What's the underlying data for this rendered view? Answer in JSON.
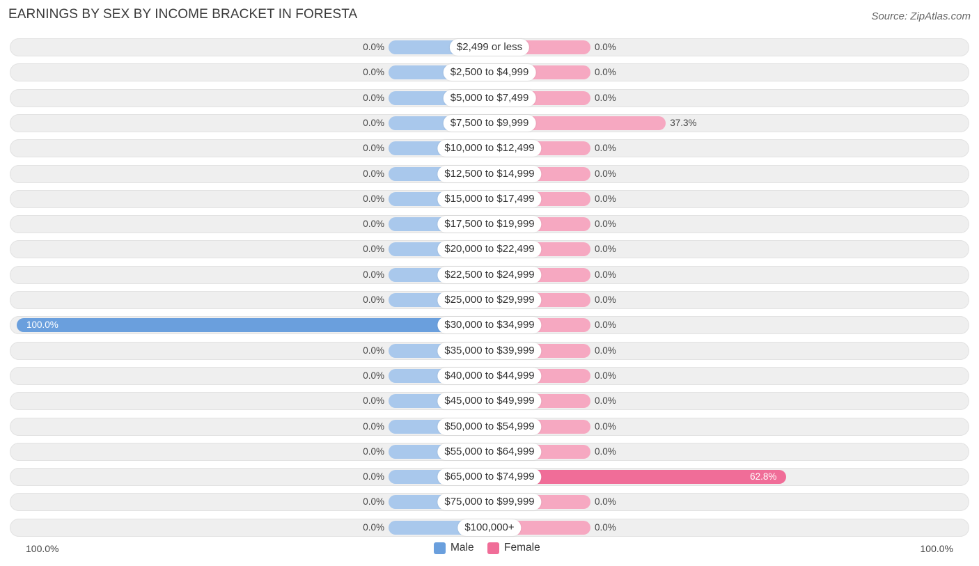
{
  "title": "EARNINGS BY SEX BY INCOME BRACKET IN FORESTA",
  "source": "Source: ZipAtlas.com",
  "colors": {
    "male": "#6a9fdd",
    "male_light": "#a9c8ec",
    "female": "#f06d98",
    "female_light": "#f6a8c1"
  },
  "chart_data": {
    "type": "bar",
    "orientation": "horizontal-diverging",
    "categories": [
      "$2,499 or less",
      "$2,500 to $4,999",
      "$5,000 to $7,499",
      "$7,500 to $9,999",
      "$10,000 to $12,499",
      "$12,500 to $14,999",
      "$15,000 to $17,499",
      "$17,500 to $19,999",
      "$20,000 to $22,499",
      "$22,500 to $24,999",
      "$25,000 to $29,999",
      "$30,000 to $34,999",
      "$35,000 to $39,999",
      "$40,000 to $44,999",
      "$45,000 to $49,999",
      "$50,000 to $54,999",
      "$55,000 to $64,999",
      "$65,000 to $74,999",
      "$75,000 to $99,999",
      "$100,000+"
    ],
    "series": [
      {
        "name": "Male",
        "values": [
          0,
          0,
          0,
          0,
          0,
          0,
          0,
          0,
          0,
          0,
          0,
          100,
          0,
          0,
          0,
          0,
          0,
          0,
          0,
          0
        ],
        "labels": [
          "0.0%",
          "0.0%",
          "0.0%",
          "0.0%",
          "0.0%",
          "0.0%",
          "0.0%",
          "0.0%",
          "0.0%",
          "0.0%",
          "0.0%",
          "100.0%",
          "0.0%",
          "0.0%",
          "0.0%",
          "0.0%",
          "0.0%",
          "0.0%",
          "0.0%",
          "0.0%"
        ]
      },
      {
        "name": "Female",
        "values": [
          0,
          0,
          0,
          37.3,
          0,
          0,
          0,
          0,
          0,
          0,
          0,
          0,
          0,
          0,
          0,
          0,
          0,
          62.8,
          0,
          0
        ],
        "labels": [
          "0.0%",
          "0.0%",
          "0.0%",
          "37.3%",
          "0.0%",
          "0.0%",
          "0.0%",
          "0.0%",
          "0.0%",
          "0.0%",
          "0.0%",
          "0.0%",
          "0.0%",
          "0.0%",
          "0.0%",
          "0.0%",
          "0.0%",
          "62.8%",
          "0.0%",
          "0.0%"
        ]
      }
    ],
    "xlim": [
      0,
      100
    ],
    "axis_left_label": "100.0%",
    "axis_right_label": "100.0%",
    "legend": [
      "Male",
      "Female"
    ],
    "legend_placement": "bottom-center"
  }
}
